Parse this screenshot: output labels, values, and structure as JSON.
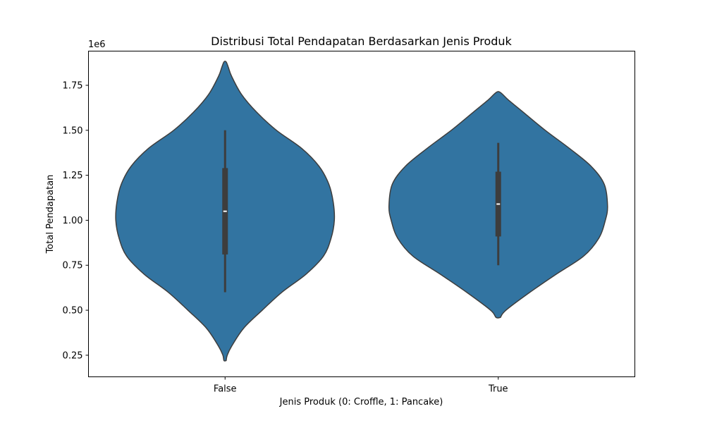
{
  "chart_data": {
    "type": "violin",
    "title": "Distribusi Total Pendapatan Berdasarkan Jenis Produk",
    "xlabel": "Jenis Produk (0: Croffle, 1: Pancake)",
    "ylabel": "Total Pendapatan",
    "y_offset_label": "1e6",
    "y_scale": 1000000,
    "ylim": [
      0.13,
      1.94
    ],
    "yticks": [
      0.25,
      0.5,
      0.75,
      1.0,
      1.25,
      1.5,
      1.75
    ],
    "ytick_labels": [
      "0.25",
      "0.50",
      "0.75",
      "1.00",
      "1.25",
      "1.50",
      "1.75"
    ],
    "categories": [
      "False",
      "True"
    ],
    "grid": false,
    "color": "#3274a1",
    "edge_color": "#3d3d3d",
    "box_color": "#3d3d3d",
    "median_color": "#ffffff",
    "violins": [
      {
        "category": "False",
        "min": 0.22,
        "max": 1.88,
        "whisker_low": 0.6,
        "whisker_high": 1.5,
        "q1": 0.81,
        "q3": 1.29,
        "median": 1.05,
        "density": [
          [
            0.22,
            0.01
          ],
          [
            0.25,
            0.02
          ],
          [
            0.3,
            0.06
          ],
          [
            0.4,
            0.17
          ],
          [
            0.5,
            0.34
          ],
          [
            0.6,
            0.52
          ],
          [
            0.7,
            0.74
          ],
          [
            0.8,
            0.9
          ],
          [
            0.9,
            0.97
          ],
          [
            1.0,
            1.0
          ],
          [
            1.1,
            0.99
          ],
          [
            1.2,
            0.95
          ],
          [
            1.3,
            0.86
          ],
          [
            1.4,
            0.7
          ],
          [
            1.5,
            0.47
          ],
          [
            1.6,
            0.29
          ],
          [
            1.7,
            0.15
          ],
          [
            1.8,
            0.06
          ],
          [
            1.85,
            0.03
          ],
          [
            1.88,
            0.01
          ]
        ]
      },
      {
        "category": "True",
        "min": 0.46,
        "max": 1.71,
        "whisker_low": 0.75,
        "whisker_high": 1.43,
        "q1": 0.91,
        "q3": 1.27,
        "median": 1.09,
        "density": [
          [
            0.46,
            0.02
          ],
          [
            0.5,
            0.07
          ],
          [
            0.6,
            0.29
          ],
          [
            0.7,
            0.53
          ],
          [
            0.8,
            0.78
          ],
          [
            0.9,
            0.92
          ],
          [
            1.0,
            0.98
          ],
          [
            1.08,
            1.0
          ],
          [
            1.2,
            0.97
          ],
          [
            1.3,
            0.85
          ],
          [
            1.4,
            0.65
          ],
          [
            1.5,
            0.43
          ],
          [
            1.6,
            0.23
          ],
          [
            1.67,
            0.09
          ],
          [
            1.71,
            0.02
          ]
        ]
      }
    ]
  }
}
